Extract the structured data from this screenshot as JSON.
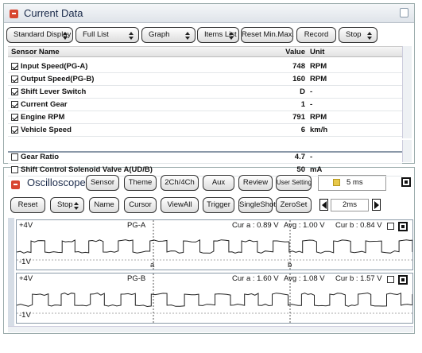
{
  "current_data": {
    "title": "Current Data",
    "toolbar": [
      {
        "label": "Standard Display",
        "dropdown": true
      },
      {
        "label": "Full List",
        "dropdown": true
      },
      {
        "label": "Graph",
        "dropdown": true
      },
      {
        "label": "Items List",
        "dropdown": true
      },
      {
        "label": "Reset Min.Max.",
        "dropdown": false
      },
      {
        "label": "Record",
        "dropdown": false
      },
      {
        "label": "Stop",
        "dropdown": true
      }
    ],
    "columns": [
      "Sensor Name",
      "Value",
      "Unit"
    ],
    "rows": [
      {
        "checked": true,
        "name": "Input Speed(PG-A)",
        "value": 748,
        "unit": "RPM"
      },
      {
        "checked": true,
        "name": "Output Speed(PG-B)",
        "value": 160,
        "unit": "RPM"
      },
      {
        "checked": true,
        "name": "Shift Lever Switch",
        "value": "D",
        "unit": "-"
      },
      {
        "checked": true,
        "name": "Current Gear",
        "value": 1,
        "unit": "-"
      },
      {
        "checked": true,
        "name": "Engine RPM",
        "value": 791,
        "unit": "RPM"
      },
      {
        "checked": true,
        "name": "Vehicle Speed",
        "value": 6,
        "unit": "km/h"
      },
      {
        "checked": false,
        "name": "Gear Ratio",
        "value": 4.7,
        "unit": "-"
      },
      {
        "checked": false,
        "name": "Shift Control Solenoid Valve A(UD/B)",
        "value": 50,
        "unit": "mA"
      }
    ]
  },
  "oscilloscope": {
    "title": "Oscilloscope",
    "toolbar_top": [
      {
        "label": "Sensor",
        "dropdown": false
      },
      {
        "label": "Theme",
        "dropdown": false
      },
      {
        "label": "2Ch/4Ch",
        "dropdown": false
      },
      {
        "label": "Aux",
        "dropdown": false
      },
      {
        "label": "Review",
        "dropdown": false
      },
      {
        "label": "User Setting",
        "dropdown": false
      }
    ],
    "time": "5 ms",
    "toolbar_bottom": [
      {
        "label": "Reset",
        "dropdown": false
      },
      {
        "label": "Stop",
        "dropdown": true
      },
      {
        "label": "Name",
        "dropdown": false
      },
      {
        "label": "Cursor",
        "dropdown": false
      },
      {
        "label": "ViewAll",
        "dropdown": false
      },
      {
        "label": "Trigger",
        "dropdown": false
      },
      {
        "label": "SingleShot",
        "dropdown": false
      },
      {
        "label": "ZeroSet",
        "dropdown": false
      }
    ],
    "timebase": "2ms",
    "cursors": [
      "a",
      "b"
    ],
    "channels": [
      {
        "max": "+4V",
        "name": "PG-A",
        "cur_a": "Cur a : 0.89 V",
        "avg": "Avg : 1.00 V",
        "cur_b": "Cur b : 0.84 V",
        "min": "-1V"
      },
      {
        "max": "+4V",
        "name": "PG-B",
        "cur_a": "Cur a : 1.60 V",
        "avg": "Avg : 1.08 V",
        "cur_b": "Cur b : 1.57 V",
        "min": "-1V"
      }
    ]
  }
}
